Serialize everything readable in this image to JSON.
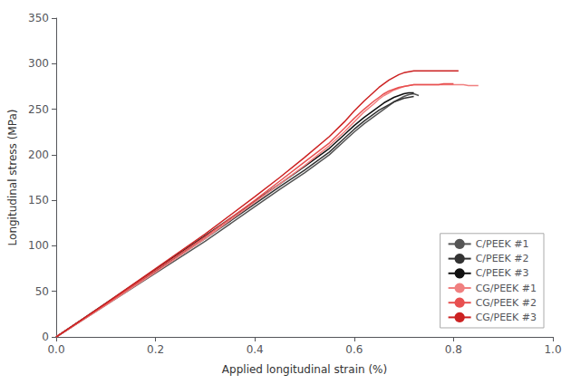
{
  "chart_data": {
    "type": "line",
    "xlabel": "Applied longitudinal strain (%)",
    "ylabel": "Longitudinal stress (MPa)",
    "xlim": [
      0,
      1.0
    ],
    "ylim": [
      0,
      350
    ],
    "xticks": [
      {
        "value": 0,
        "label": "0.0"
      },
      0.2,
      0.4,
      0.6,
      0.8,
      {
        "value": 1.0,
        "label": "1.0"
      }
    ],
    "yticks": [
      0,
      50,
      100,
      150,
      200,
      250,
      300,
      350
    ],
    "grid": false,
    "legend": "lower right",
    "series": [
      {
        "name": "C/PEEK #1",
        "color": "#555555",
        "x": [
          0,
          0.1,
          0.2,
          0.3,
          0.4,
          0.45,
          0.5,
          0.55,
          0.58,
          0.6,
          0.62,
          0.64,
          0.65,
          0.66,
          0.67,
          0.68,
          0.69,
          0.7,
          0.71,
          0.72,
          0.73
        ],
        "values": [
          0,
          35,
          70,
          105,
          143,
          162,
          180,
          200,
          215,
          225,
          234,
          242,
          246,
          250,
          254,
          258,
          261,
          264,
          266,
          267,
          265
        ]
      },
      {
        "name": "C/PEEK #2",
        "color": "#333333",
        "x": [
          0,
          0.1,
          0.2,
          0.3,
          0.4,
          0.45,
          0.5,
          0.55,
          0.58,
          0.6,
          0.62,
          0.64,
          0.65,
          0.66,
          0.67,
          0.68,
          0.69,
          0.7,
          0.71,
          0.72
        ],
        "values": [
          0,
          36,
          72,
          108,
          146,
          165,
          183,
          203,
          218,
          228,
          237,
          245,
          249,
          252,
          255,
          258,
          260,
          262,
          263,
          264
        ]
      },
      {
        "name": "C/PEEK #3",
        "color": "#111111",
        "x": [
          0,
          0.1,
          0.2,
          0.3,
          0.4,
          0.45,
          0.5,
          0.55,
          0.58,
          0.6,
          0.62,
          0.64,
          0.65,
          0.66,
          0.67,
          0.68,
          0.69,
          0.7,
          0.71,
          0.72
        ],
        "values": [
          0,
          37,
          74,
          111,
          149,
          168,
          187,
          207,
          222,
          232,
          241,
          249,
          253,
          257,
          260,
          263,
          265,
          267,
          268,
          268
        ]
      },
      {
        "name": "CG/PEEK #1",
        "color": "#f08080",
        "x": [
          0,
          0.1,
          0.2,
          0.3,
          0.4,
          0.45,
          0.5,
          0.55,
          0.58,
          0.6,
          0.62,
          0.64,
          0.65,
          0.66,
          0.67,
          0.68,
          0.69,
          0.7,
          0.71,
          0.72,
          0.73,
          0.74,
          0.75,
          0.76,
          0.77,
          0.78,
          0.79,
          0.8,
          0.81,
          0.82,
          0.83,
          0.84,
          0.85
        ],
        "values": [
          0,
          35,
          71,
          108,
          148,
          168,
          188,
          210,
          225,
          236,
          247,
          256,
          261,
          265,
          268,
          271,
          273,
          275,
          276,
          277,
          277,
          277,
          277,
          277,
          277,
          277,
          277,
          277,
          277,
          277,
          276,
          276,
          276
        ]
      },
      {
        "name": "CG/PEEK #2",
        "color": "#e85050",
        "x": [
          0,
          0.1,
          0.2,
          0.3,
          0.4,
          0.45,
          0.5,
          0.55,
          0.58,
          0.6,
          0.62,
          0.64,
          0.65,
          0.66,
          0.67,
          0.68,
          0.69,
          0.7,
          0.71,
          0.72,
          0.73,
          0.74,
          0.75,
          0.76,
          0.77,
          0.78,
          0.79,
          0.8
        ],
        "values": [
          0,
          36,
          73,
          110,
          150,
          171,
          192,
          213,
          229,
          240,
          250,
          259,
          263,
          267,
          270,
          272,
          274,
          275,
          276,
          277,
          277,
          277,
          277,
          277,
          277,
          278,
          278,
          278
        ]
      },
      {
        "name": "CG/PEEK #3",
        "color": "#cc2222",
        "x": [
          0,
          0.1,
          0.2,
          0.3,
          0.4,
          0.45,
          0.5,
          0.55,
          0.58,
          0.6,
          0.62,
          0.64,
          0.65,
          0.66,
          0.67,
          0.68,
          0.69,
          0.7,
          0.71,
          0.72,
          0.73,
          0.74,
          0.75,
          0.76,
          0.77,
          0.78,
          0.79,
          0.8,
          0.81
        ],
        "values": [
          0,
          37,
          75,
          113,
          154,
          175,
          197,
          220,
          236,
          248,
          259,
          269,
          274,
          278,
          282,
          285,
          288,
          290,
          291,
          292,
          292,
          292,
          292,
          292,
          292,
          292,
          292,
          292,
          292
        ]
      }
    ]
  }
}
